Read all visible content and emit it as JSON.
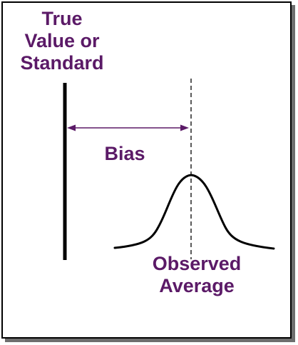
{
  "labels": {
    "true_value": [
      "True",
      "Value or",
      "Standard"
    ],
    "bias": "Bias",
    "observed_average": [
      "Observed",
      "Average"
    ]
  },
  "colors": {
    "text": "#5b1a67",
    "arrow": "#5b1a67",
    "line": "#000000",
    "shadow": "#6e6e6e"
  }
}
